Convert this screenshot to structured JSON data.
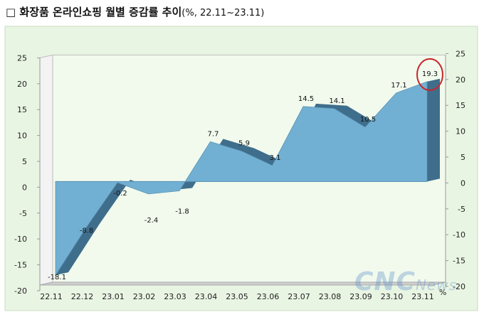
{
  "title": {
    "main": "□ 화장품 온라인쇼핑 월별 증감률 추이",
    "sub": "(%, 22.11~23.11)"
  },
  "unit_label": "%",
  "watermark": {
    "brand": "CNC",
    "suffix": "News"
  },
  "colors": {
    "area": "#72b0d3",
    "area_edge": "#3f6e8c",
    "panel": "#e9f5e3",
    "highlight": "#c9262a"
  },
  "chart_data": {
    "type": "area",
    "categories": [
      "22.11",
      "22.12",
      "23.01",
      "23.02",
      "23.03",
      "23.04",
      "23.05",
      "23.06",
      "23.07",
      "23.08",
      "23.09",
      "23.10",
      "23.11"
    ],
    "values": [
      -18.1,
      -8.8,
      -0.2,
      -2.4,
      -1.8,
      7.7,
      5.9,
      3.1,
      14.5,
      14.1,
      10.5,
      17.1,
      19.3
    ],
    "labels": [
      "-18.1",
      "-8.8",
      "-0.2",
      "-2.4",
      "-1.8",
      "7.7",
      "5.9",
      "3.1",
      "14.5",
      "14.1",
      "10.5",
      "17.1",
      "19.3"
    ],
    "ylim": [
      -20,
      25
    ],
    "yticks": [
      "25",
      "20",
      "15",
      "10",
      "5",
      "0",
      "-5",
      "-10",
      "-15",
      "-20"
    ],
    "ytick_values": [
      25,
      20,
      15,
      10,
      5,
      0,
      -5,
      -10,
      -15,
      -20
    ],
    "highlight": "23.11",
    "grid": false,
    "legend": "none"
  }
}
